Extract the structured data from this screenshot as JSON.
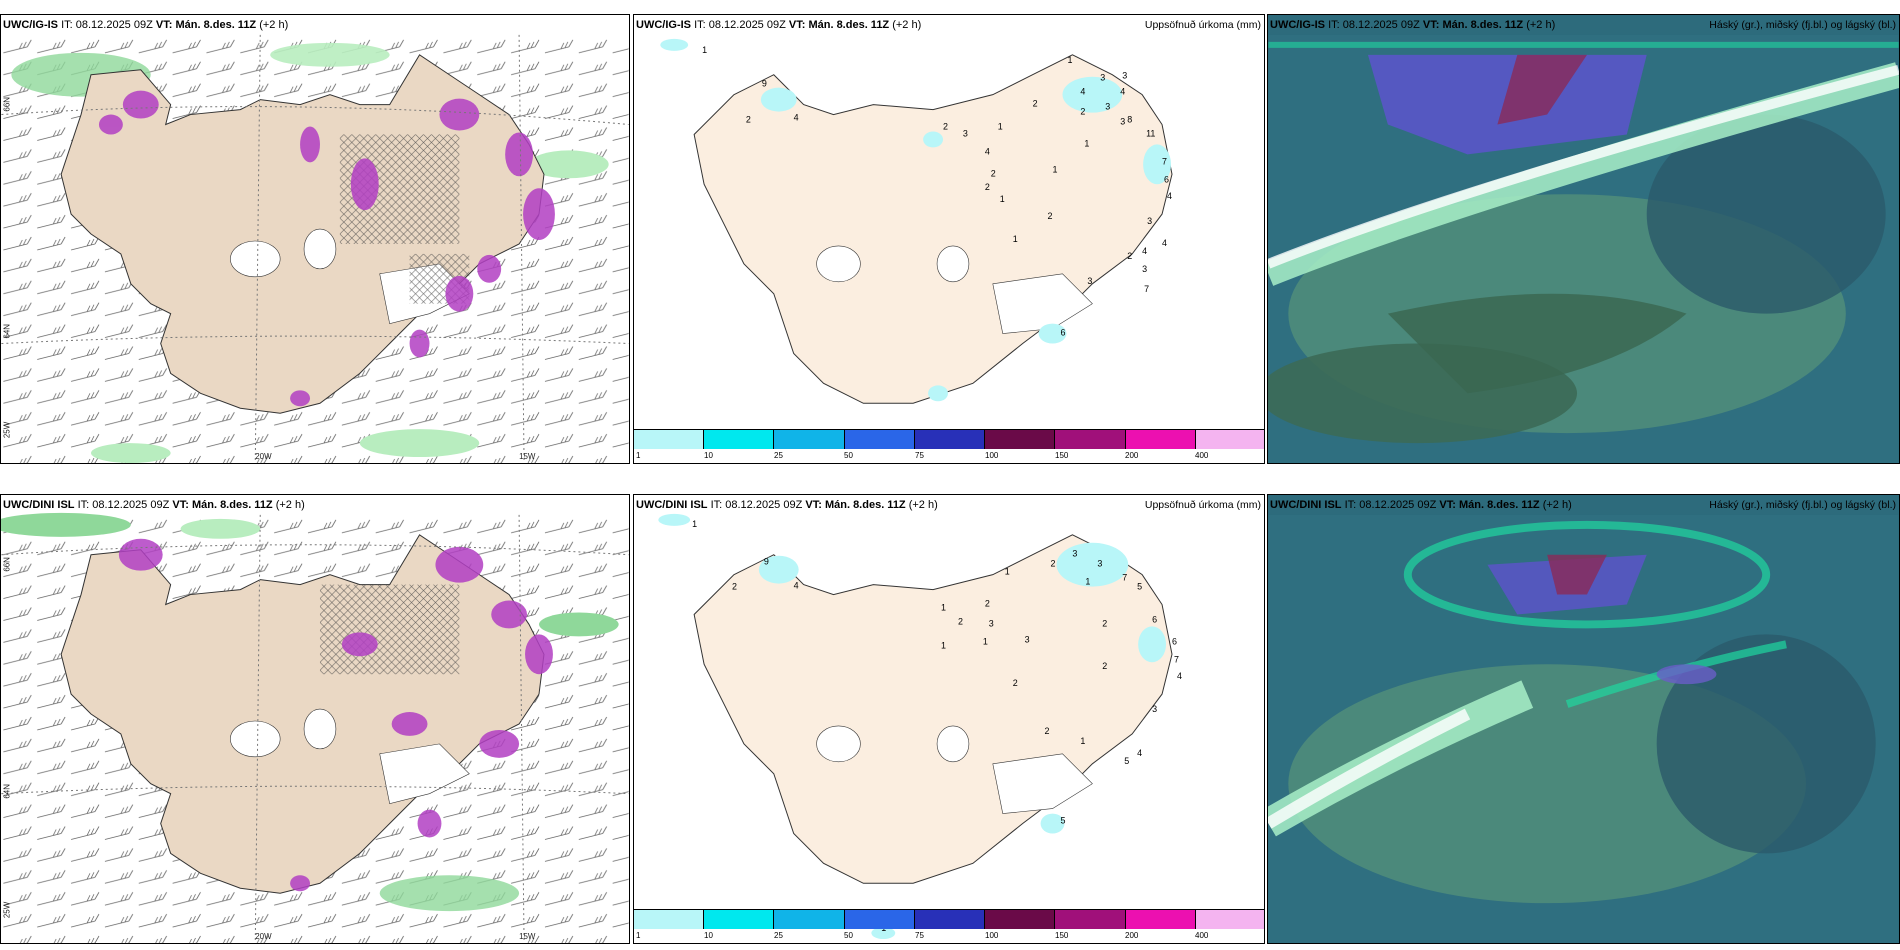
{
  "rows": [
    {
      "model": "UWC/IG-IS",
      "it_label": "IT:",
      "it": "08.12.2025 09Z",
      "vt_label": "VT:",
      "vt": "Mán. 8.des. 11Z",
      "offset": "(+2 h)"
    },
    {
      "model": "UWC/DINI ISL",
      "it_label": "IT:",
      "it": "08.12.2025 09Z",
      "vt_label": "VT:",
      "vt": "Mán. 8.des. 11Z",
      "offset": "(+2 h)"
    }
  ],
  "precip_title": "Uppsöfnuð úrkoma (mm)",
  "cloud_title": "Háský (gr.), miðský (fj.bl.) og lágský (bl.)",
  "axis": {
    "lon1": "20W",
    "lon2": "15W",
    "lat1": "66N",
    "lat2": "64N",
    "lat3": "25W"
  },
  "colorbar": {
    "ticks": [
      "1",
      "10",
      "25",
      "50",
      "75",
      "100",
      "150",
      "200",
      "400"
    ],
    "colors": [
      "#b8f6f8",
      "#00e8ee",
      "#10b4e8",
      "#2a66e8",
      "#2830b8",
      "#6a0a48",
      "#a0107a",
      "#ec10b0",
      "#f4b4f0"
    ]
  },
  "precip_labels_top": [
    "1",
    "9",
    "2",
    "4",
    "1",
    "4",
    "3",
    "3",
    "2",
    "3",
    "4",
    "3",
    "8",
    "2",
    "1",
    "11",
    "7",
    "6",
    "4",
    "3",
    "4",
    "4",
    "2",
    "3",
    "7",
    "1",
    "1",
    "2",
    "2",
    "1",
    "2",
    "3",
    "4",
    "2",
    "3",
    "1",
    "6"
  ],
  "precip_labels_bot": [
    "1",
    "2",
    "9",
    "4",
    "3",
    "3",
    "1",
    "5",
    "7",
    "6",
    "2",
    "2",
    "1",
    "3",
    "2",
    "6",
    "7",
    "4",
    "2",
    "3",
    "1",
    "1",
    "2",
    "2",
    "2",
    "3",
    "1",
    "1",
    "4",
    "5",
    "5",
    "1"
  ],
  "cloud_colors": {
    "high": "#2e8f3e",
    "mid": "#4a3f9a",
    "low": "#3e6e88"
  }
}
